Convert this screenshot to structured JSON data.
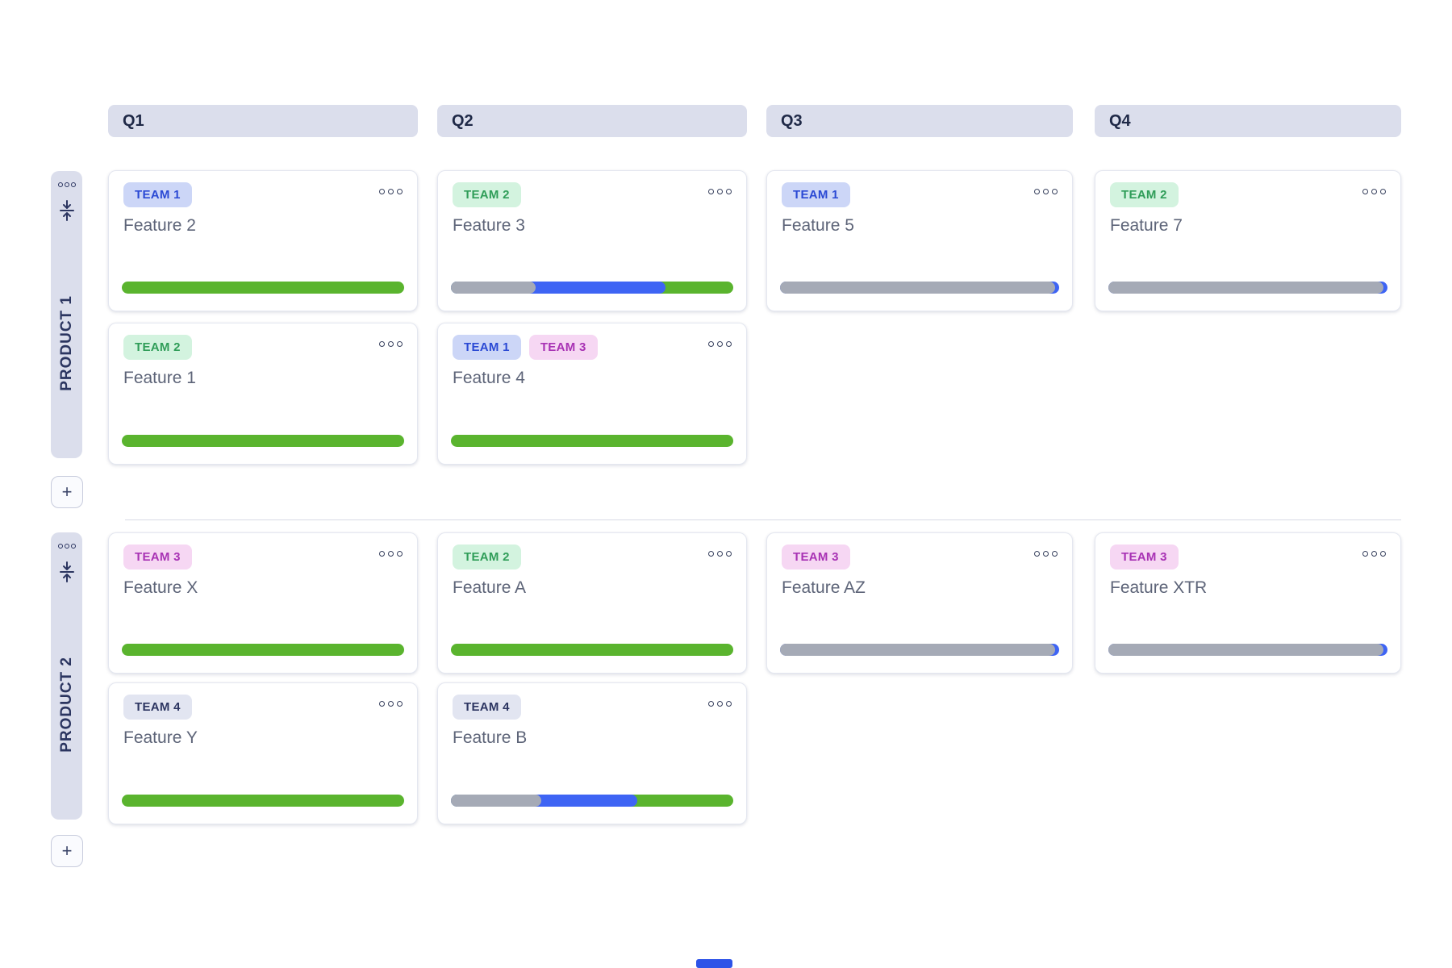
{
  "quarters": [
    "Q1",
    "Q2",
    "Q3",
    "Q4"
  ],
  "products": [
    {
      "name": "PRODUCT 1"
    },
    {
      "name": "PRODUCT 2"
    }
  ],
  "sidebar": {
    "add_label": "+",
    "menu_icon": "ellipsis-dots",
    "collapse_icon": "collapse-vertical"
  },
  "icons": {
    "card_menu": "ellipsis-dots"
  },
  "team_colors": {
    "TEAM 1": {
      "bg": "#ccd6f7",
      "text": "#2a49d4"
    },
    "TEAM 2": {
      "bg": "#d3f3df",
      "text": "#2f9d58"
    },
    "TEAM 3": {
      "bg": "#f6d7f3",
      "text": "#a832b4"
    },
    "TEAM 4": {
      "bg": "#e2e5f1",
      "text": "#2c3561"
    }
  },
  "status_colors": {
    "todo": "#a5aab6",
    "inprogress": "#3e64f4",
    "done": "#5ab42e"
  },
  "cards": [
    {
      "title": "Feature 2",
      "product": "PRODUCT 1",
      "quarter": "Q1",
      "teams": [
        "TEAM 1"
      ],
      "progress": [
        {
          "status": "done",
          "pct": 100
        }
      ]
    },
    {
      "title": "Feature 3",
      "product": "PRODUCT 1",
      "quarter": "Q2",
      "teams": [
        "TEAM 2"
      ],
      "progress": [
        {
          "status": "todo",
          "pct": 30
        },
        {
          "status": "inprogress",
          "pct": 46
        },
        {
          "status": "done",
          "pct": 24
        }
      ]
    },
    {
      "title": "Feature 5",
      "product": "PRODUCT 1",
      "quarter": "Q3",
      "teams": [
        "TEAM 1"
      ],
      "progress": [
        {
          "status": "todo",
          "pct": 98.5
        },
        {
          "status": "inprogress",
          "pct": 1.5
        }
      ]
    },
    {
      "title": "Feature 7",
      "product": "PRODUCT 1",
      "quarter": "Q4",
      "teams": [
        "TEAM 2"
      ],
      "progress": [
        {
          "status": "todo",
          "pct": 98.5
        },
        {
          "status": "inprogress",
          "pct": 1.5
        }
      ]
    },
    {
      "title": "Feature 1",
      "product": "PRODUCT 1",
      "quarter": "Q1",
      "teams": [
        "TEAM 2"
      ],
      "progress": [
        {
          "status": "done",
          "pct": 100
        }
      ]
    },
    {
      "title": "Feature 4",
      "product": "PRODUCT 1",
      "quarter": "Q2",
      "teams": [
        "TEAM 1",
        "TEAM 3"
      ],
      "progress": [
        {
          "status": "done",
          "pct": 100
        }
      ]
    },
    {
      "title": "Feature X",
      "product": "PRODUCT 2",
      "quarter": "Q1",
      "teams": [
        "TEAM 3"
      ],
      "progress": [
        {
          "status": "done",
          "pct": 100
        }
      ]
    },
    {
      "title": "Feature A",
      "product": "PRODUCT 2",
      "quarter": "Q2",
      "teams": [
        "TEAM 2"
      ],
      "progress": [
        {
          "status": "done",
          "pct": 100
        }
      ]
    },
    {
      "title": "Feature AZ",
      "product": "PRODUCT 2",
      "quarter": "Q3",
      "teams": [
        "TEAM 3"
      ],
      "progress": [
        {
          "status": "todo",
          "pct": 98.5
        },
        {
          "status": "inprogress",
          "pct": 1.5
        }
      ]
    },
    {
      "title": "Feature XTR",
      "product": "PRODUCT 2",
      "quarter": "Q4",
      "teams": [
        "TEAM 3"
      ],
      "progress": [
        {
          "status": "todo",
          "pct": 98.5
        },
        {
          "status": "inprogress",
          "pct": 1.5
        }
      ]
    },
    {
      "title": "Feature Y",
      "product": "PRODUCT 2",
      "quarter": "Q1",
      "teams": [
        "TEAM 4"
      ],
      "progress": [
        {
          "status": "done",
          "pct": 100
        }
      ]
    },
    {
      "title": "Feature B",
      "product": "PRODUCT 2",
      "quarter": "Q2",
      "teams": [
        "TEAM 4"
      ],
      "progress": [
        {
          "status": "todo",
          "pct": 32
        },
        {
          "status": "inprogress",
          "pct": 34
        },
        {
          "status": "done",
          "pct": 34
        }
      ]
    }
  ]
}
